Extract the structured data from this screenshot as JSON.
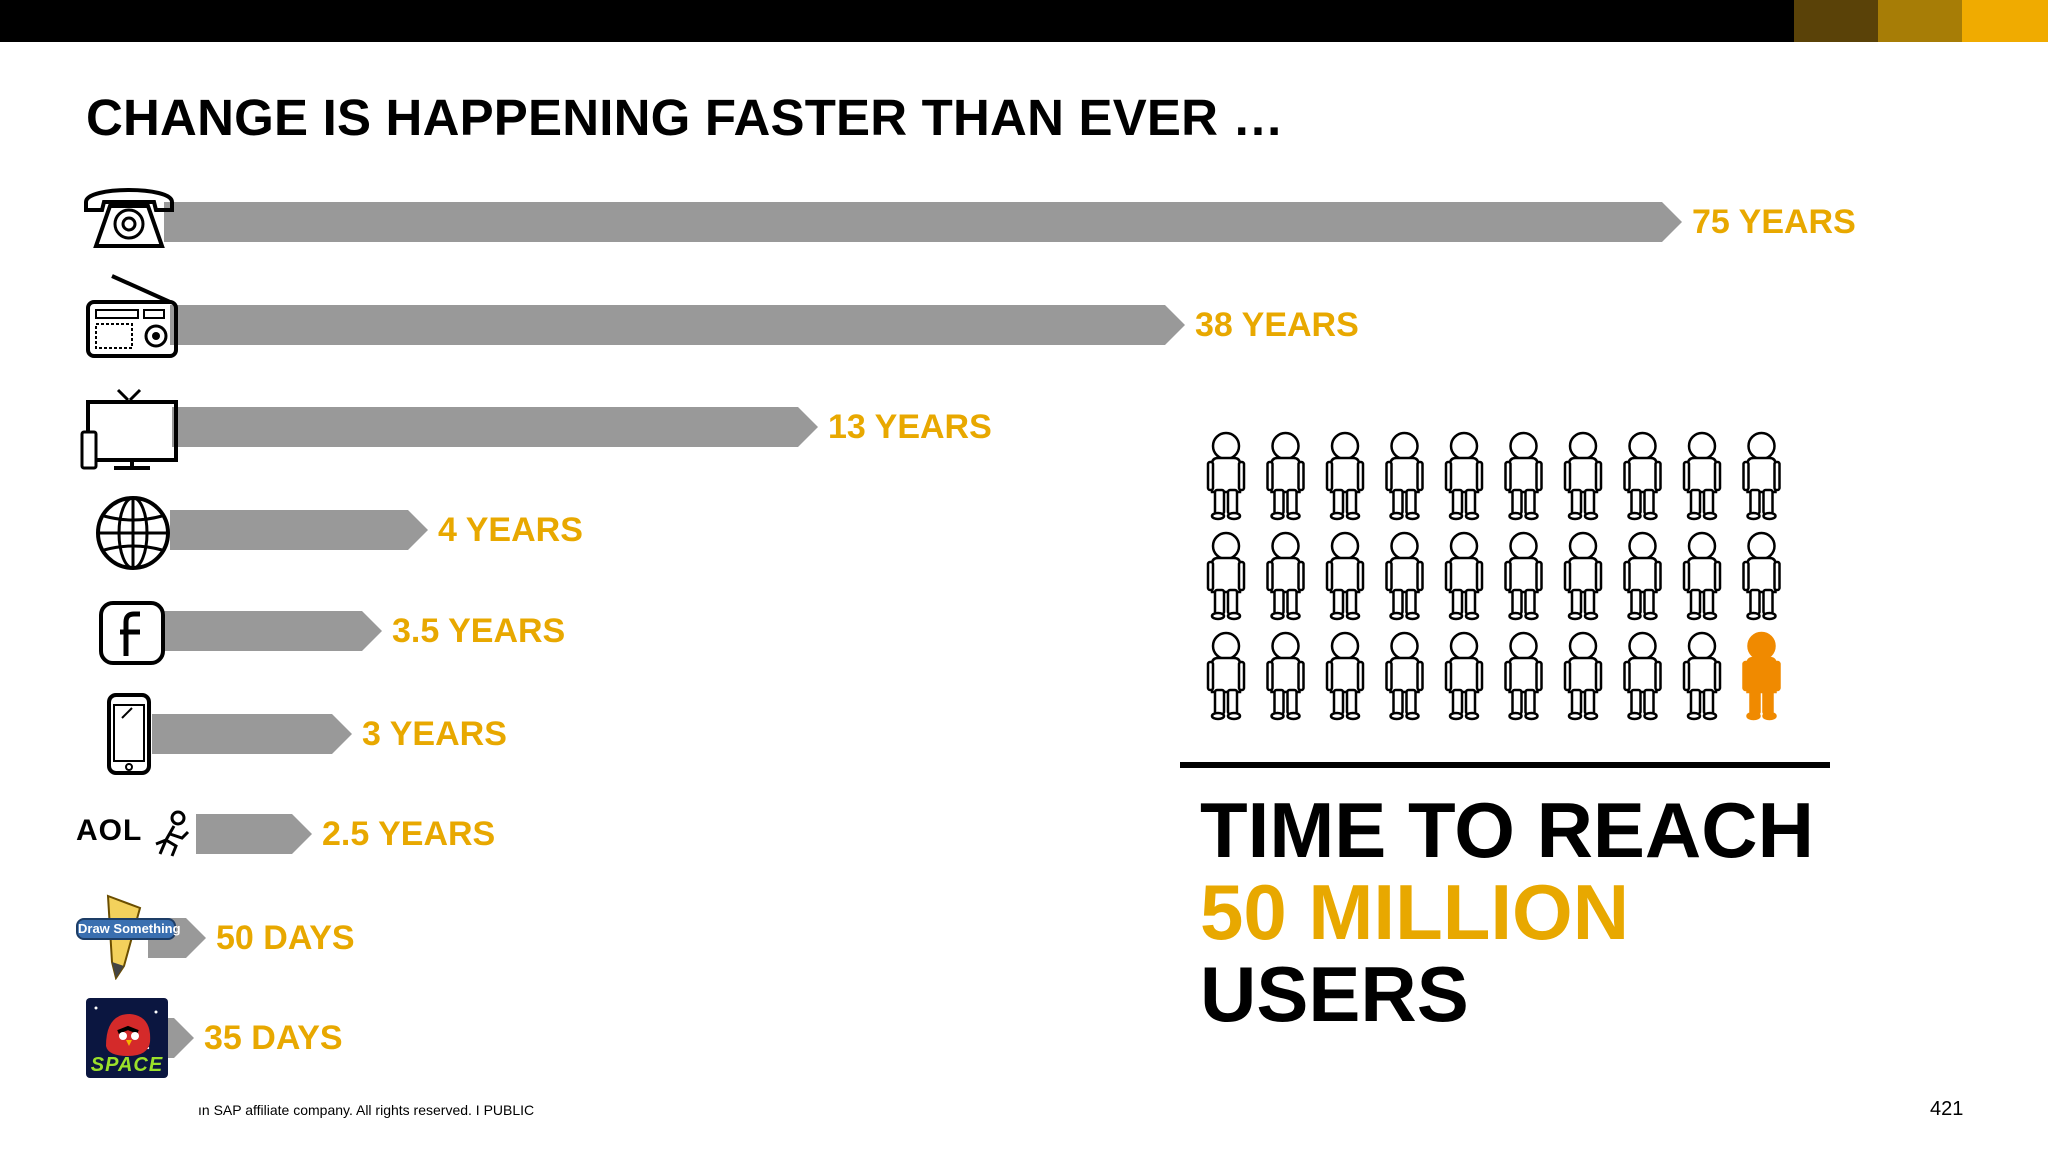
{
  "slide": {
    "title": "CHANGE IS HAPPENING FASTER THAN EVER …",
    "footer": "ın SAP affiliate company. All rights reserved.  I  PUBLIC",
    "page_number": "421"
  },
  "colors": {
    "accent": "#E8A800",
    "bar": "#999999",
    "stripe_1": "#5A4208",
    "stripe_2": "#A77D06",
    "stripe_3": "#F0AB00",
    "person_highlight": "#F08A00"
  },
  "items": [
    {
      "icon": "telephone-icon",
      "value": 75,
      "unit": "years",
      "label": "75 YEARS"
    },
    {
      "icon": "radio-icon",
      "value": 38,
      "unit": "years",
      "label": "38 YEARS"
    },
    {
      "icon": "television-icon",
      "value": 13,
      "unit": "years",
      "label": "13 YEARS"
    },
    {
      "icon": "globe-icon",
      "value": 4,
      "unit": "years",
      "label": "4 YEARS"
    },
    {
      "icon": "facebook-icon",
      "value": 3.5,
      "unit": "years",
      "label": "3.5 YEARS"
    },
    {
      "icon": "smartphone-icon",
      "value": 3,
      "unit": "years",
      "label": "3 YEARS"
    },
    {
      "icon": "aol-logo-icon",
      "logo_text": "AOL",
      "value": 2.5,
      "unit": "years",
      "label": "2.5 YEARS"
    },
    {
      "icon": "draw-something-icon",
      "logo_text": "Draw Something",
      "value": 50,
      "unit": "days",
      "label": "50 DAYS"
    },
    {
      "icon": "angry-birds-space-icon",
      "logo_text": "SPACE",
      "value": 35,
      "unit": "days",
      "label": "35 DAYS"
    }
  ],
  "people": {
    "total": 30,
    "highlighted": 1
  },
  "headline": {
    "line1": "TIME TO REACH",
    "line2": "50 MILLION",
    "line3": "USERS"
  }
}
